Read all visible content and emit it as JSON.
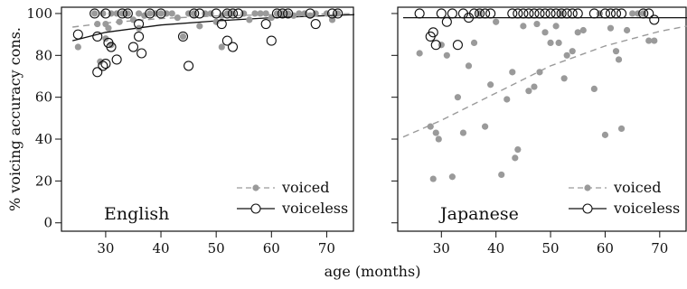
{
  "chart_data": {
    "type": "scatter",
    "xlabel": "age (months)",
    "ylabel": "% voicing accuracy cons.",
    "xlim": [
      22,
      75
    ],
    "ylim": [
      -4,
      103
    ],
    "xticks": [
      30,
      40,
      50,
      60,
      70
    ],
    "yticks": [
      0,
      20,
      40,
      60,
      80,
      100
    ],
    "grid": false,
    "legend_position": "bottom-right",
    "panels": [
      {
        "label": "English",
        "series": [
          {
            "name": "voiced",
            "marker": "filled-circle",
            "color": "#9a9a9a",
            "points": [
              [
                25,
                84
              ],
              [
                28,
                100
              ],
              [
                28.5,
                95
              ],
              [
                29,
                77
              ],
              [
                29.5,
                100
              ],
              [
                30,
                88
              ],
              [
                30,
                95
              ],
              [
                30.5,
                93
              ],
              [
                31,
                100
              ],
              [
                31,
                85
              ],
              [
                32,
                100
              ],
              [
                32.5,
                96
              ],
              [
                33,
                100
              ],
              [
                34,
                100
              ],
              [
                35,
                97
              ],
              [
                36,
                100
              ],
              [
                36,
                93
              ],
              [
                37,
                99
              ],
              [
                38,
                100
              ],
              [
                39,
                100
              ],
              [
                40,
                100
              ],
              [
                41,
                100
              ],
              [
                42,
                100
              ],
              [
                43,
                98
              ],
              [
                44,
                89
              ],
              [
                45,
                100
              ],
              [
                46,
                100
              ],
              [
                47,
                94
              ],
              [
                48,
                100
              ],
              [
                49,
                100
              ],
              [
                50,
                96
              ],
              [
                51,
                99
              ],
              [
                51,
                84
              ],
              [
                52,
                100
              ],
              [
                53,
                100
              ],
              [
                55,
                100
              ],
              [
                56,
                97
              ],
              [
                57,
                100
              ],
              [
                58,
                100
              ],
              [
                59,
                100
              ],
              [
                60,
                98
              ],
              [
                61,
                100
              ],
              [
                62,
                100
              ],
              [
                63,
                100
              ],
              [
                64,
                99
              ],
              [
                65,
                100
              ],
              [
                66,
                100
              ],
              [
                67,
                99
              ],
              [
                68,
                100
              ],
              [
                70,
                100
              ],
              [
                71,
                97
              ],
              [
                72,
                100
              ]
            ],
            "trend": [
              [
                24,
                93.5
              ],
              [
                30,
                95.5
              ],
              [
                40,
                97.6
              ],
              [
                50,
                98.8
              ],
              [
                60,
                99.4
              ],
              [
                70,
                99.8
              ],
              [
                75,
                99.9
              ]
            ]
          },
          {
            "name": "voiceless",
            "marker": "open-circle",
            "color": "#111111",
            "points": [
              [
                25,
                90
              ],
              [
                28,
                100
              ],
              [
                28.5,
                89
              ],
              [
                28.5,
                72
              ],
              [
                29.5,
                75
              ],
              [
                30,
                76
              ],
              [
                30,
                100
              ],
              [
                30.5,
                86
              ],
              [
                31,
                84
              ],
              [
                32,
                78
              ],
              [
                33,
                100
              ],
              [
                34,
                100
              ],
              [
                35,
                84
              ],
              [
                36,
                89
              ],
              [
                36,
                95
              ],
              [
                36.5,
                81
              ],
              [
                38,
                100
              ],
              [
                40,
                100
              ],
              [
                44,
                89
              ],
              [
                45,
                75
              ],
              [
                46,
                100
              ],
              [
                47,
                100
              ],
              [
                50,
                100
              ],
              [
                51,
                95
              ],
              [
                52,
                100
              ],
              [
                52,
                87
              ],
              [
                53,
                84
              ],
              [
                53,
                100
              ],
              [
                54,
                100
              ],
              [
                59,
                95
              ],
              [
                60,
                87
              ],
              [
                61,
                100
              ],
              [
                62,
                100
              ],
              [
                63,
                100
              ],
              [
                67,
                100
              ],
              [
                68,
                95
              ],
              [
                71,
                100
              ],
              [
                72,
                100
              ]
            ],
            "trend": [
              [
                24,
                87
              ],
              [
                30,
                91
              ],
              [
                40,
                94.5
              ],
              [
                50,
                96.5
              ],
              [
                60,
                98
              ],
              [
                70,
                99
              ],
              [
                75,
                99.4
              ]
            ]
          }
        ]
      },
      {
        "label": "Japanese",
        "series": [
          {
            "name": "voiced",
            "marker": "filled-circle",
            "color": "#9a9a9a",
            "points": [
              [
                26,
                81
              ],
              [
                28,
                46
              ],
              [
                28.5,
                21
              ],
              [
                29,
                43
              ],
              [
                29.5,
                40
              ],
              [
                30,
                85
              ],
              [
                31,
                80
              ],
              [
                32,
                22
              ],
              [
                33,
                60
              ],
              [
                34,
                43
              ],
              [
                35,
                75
              ],
              [
                36,
                86
              ],
              [
                37,
                100
              ],
              [
                38,
                46
              ],
              [
                39,
                66
              ],
              [
                40,
                96
              ],
              [
                41,
                23
              ],
              [
                42,
                59
              ],
              [
                43,
                72
              ],
              [
                43.5,
                31
              ],
              [
                44,
                35
              ],
              [
                45,
                94
              ],
              [
                46,
                63
              ],
              [
                47,
                65
              ],
              [
                47.5,
                95
              ],
              [
                48,
                72
              ],
              [
                49,
                91
              ],
              [
                50,
                86
              ],
              [
                51,
                94
              ],
              [
                51.5,
                86
              ],
              [
                52,
                100
              ],
              [
                52.5,
                69
              ],
              [
                53,
                80
              ],
              [
                54,
                82
              ],
              [
                55,
                91
              ],
              [
                56,
                92
              ],
              [
                58,
                64
              ],
              [
                59,
                100
              ],
              [
                60,
                42
              ],
              [
                61,
                93
              ],
              [
                62,
                82
              ],
              [
                62.5,
                78
              ],
              [
                63,
                45
              ],
              [
                64,
                92
              ],
              [
                65,
                100
              ],
              [
                66,
                100
              ],
              [
                67,
                100
              ],
              [
                68,
                87
              ],
              [
                69,
                87
              ]
            ],
            "trend": [
              [
                23,
                41
              ],
              [
                30,
                49
              ],
              [
                40,
                62
              ],
              [
                50,
                75
              ],
              [
                60,
                84.5
              ],
              [
                70,
                91.5
              ],
              [
                75,
                94
              ]
            ]
          },
          {
            "name": "voiceless",
            "marker": "open-circle",
            "color": "#111111",
            "points": [
              [
                26,
                100
              ],
              [
                28,
                89
              ],
              [
                28.5,
                91
              ],
              [
                29,
                85
              ],
              [
                30,
                100
              ],
              [
                31,
                96
              ],
              [
                32,
                100
              ],
              [
                33,
                85
              ],
              [
                34,
                100
              ],
              [
                35,
                98
              ],
              [
                36,
                100
              ],
              [
                37,
                100
              ],
              [
                38,
                100
              ],
              [
                39,
                100
              ],
              [
                43,
                100
              ],
              [
                44,
                100
              ],
              [
                45,
                100
              ],
              [
                46,
                100
              ],
              [
                47,
                100
              ],
              [
                48,
                100
              ],
              [
                49,
                100
              ],
              [
                50,
                100
              ],
              [
                51,
                100
              ],
              [
                52,
                100
              ],
              [
                53,
                100
              ],
              [
                54,
                100
              ],
              [
                55,
                100
              ],
              [
                58,
                100
              ],
              [
                60,
                100
              ],
              [
                61,
                100
              ],
              [
                62,
                100
              ],
              [
                63,
                100
              ],
              [
                67,
                100
              ],
              [
                68,
                100
              ],
              [
                69,
                97
              ]
            ],
            "trend": [
              [
                23,
                98
              ],
              [
                40,
                98
              ],
              [
                60,
                98
              ],
              [
                75,
                98
              ]
            ]
          }
        ]
      }
    ]
  }
}
